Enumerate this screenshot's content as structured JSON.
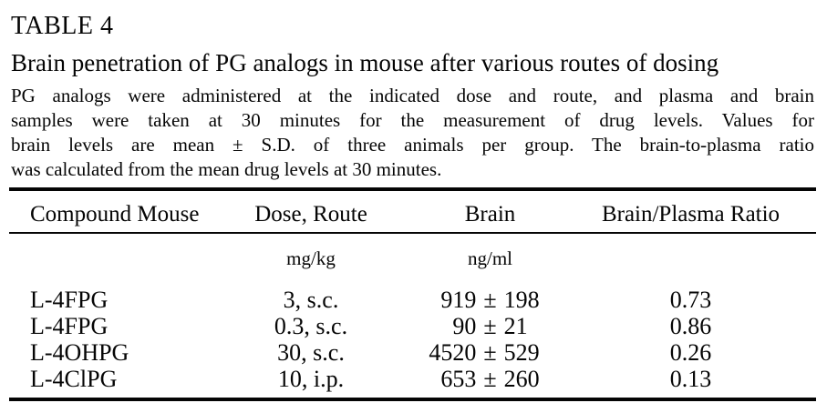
{
  "page": {
    "label": "TABLE 4",
    "title": "Brain penetration of PG analogs in mouse after various routes of dosing"
  },
  "description": {
    "lines": [
      "PG analogs were administered at the indicated dose and route, and plasma and brain",
      "samples were taken at 30 minutes for the measurement of drug levels. Values for",
      "brain levels are mean ± S.D. of three animals per group. The brain-to-plasma ratio",
      "was calculated from the mean drug levels at 30 minutes."
    ]
  },
  "table": {
    "columns": [
      "Compound Mouse",
      "Dose, Route",
      "Brain",
      "Brain/Plasma Ratio"
    ],
    "units": {
      "dose": "mg/kg",
      "brain": "ng/ml"
    },
    "rows": [
      {
        "compound": "L-4FPG",
        "dose": "3, s.c.",
        "brain_mean": "919",
        "pm": "±",
        "brain_sd": "198",
        "ratio": "0.73"
      },
      {
        "compound": "L-4FPG",
        "dose": "0.3, s.c.",
        "brain_mean": "90",
        "pm": "±",
        "brain_sd": "21",
        "ratio": "0.86"
      },
      {
        "compound": "L-4OHPG",
        "dose": "30, s.c.",
        "brain_mean": "4520",
        "pm": "±",
        "brain_sd": "529",
        "ratio": "0.26"
      },
      {
        "compound": "L-4ClPG",
        "dose": "10, i.p.",
        "brain_mean": "653",
        "pm": "±",
        "brain_sd": "260",
        "ratio": "0.13"
      }
    ]
  },
  "chart_data": {
    "type": "table",
    "title": "Brain penetration of PG analogs in mouse after various routes of dosing",
    "columns": [
      "Compound Mouse",
      "Dose, Route (mg/kg)",
      "Brain (ng/ml)",
      "Brain/Plasma Ratio"
    ],
    "rows": [
      [
        "L-4FPG",
        "3, s.c.",
        "919 ± 198",
        0.73
      ],
      [
        "L-4FPG",
        "0.3, s.c.",
        "90 ± 21",
        0.86
      ],
      [
        "L-4OHPG",
        "30, s.c.",
        "4520 ± 529",
        0.26
      ],
      [
        "L-4ClPG",
        "10, i.p.",
        "653 ± 260",
        0.13
      ]
    ]
  }
}
